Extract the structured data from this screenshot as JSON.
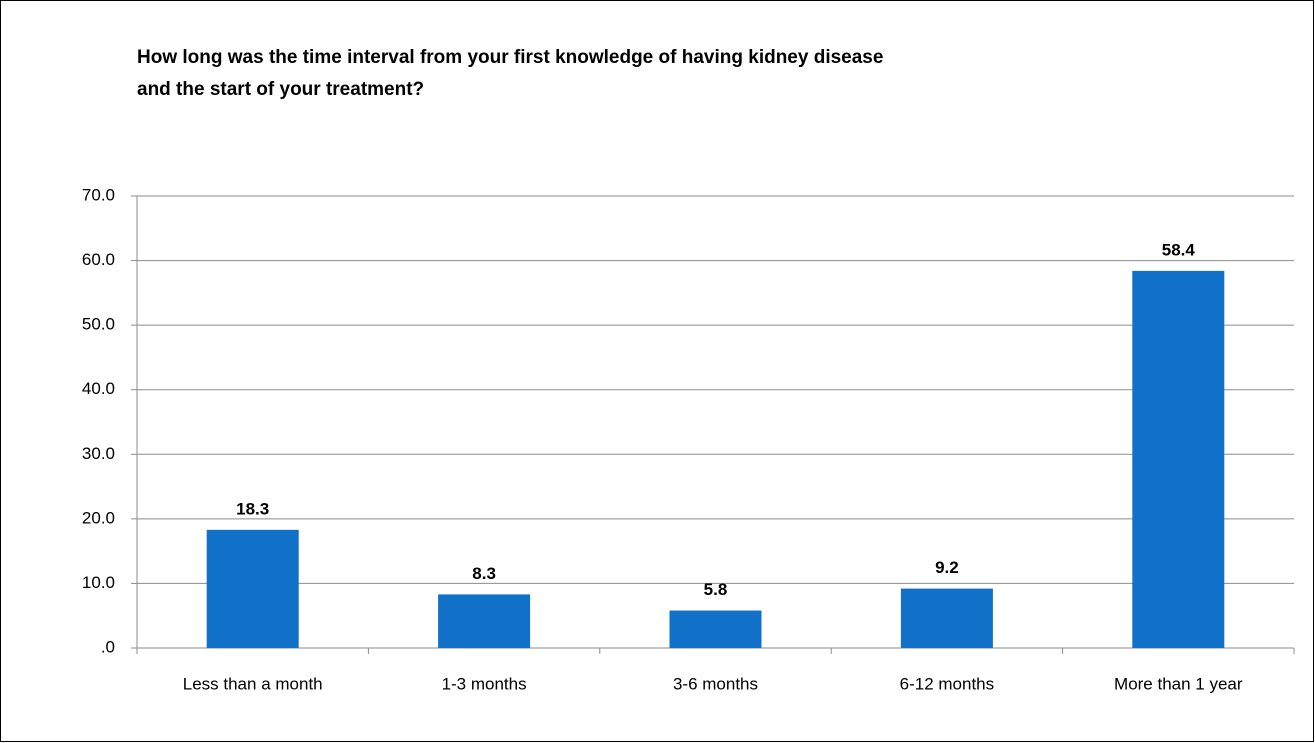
{
  "chart_data": {
    "type": "bar",
    "title": [
      "How long was the time interval from your first knowledge of having kidney disease",
      "and the start of your treatment?"
    ],
    "categories": [
      "Less than a month",
      "1-3 months",
      "3-6 months",
      "6-12 months",
      "More than 1 year"
    ],
    "values": [
      18.3,
      8.3,
      5.8,
      9.2,
      58.4
    ],
    "color": "#1170c8",
    "ylim": [
      0,
      70
    ],
    "yticks": [
      {
        "value": 0,
        "label": ".0"
      },
      {
        "value": 10,
        "label": "10.0"
      },
      {
        "value": 20,
        "label": "20.0"
      },
      {
        "value": 30,
        "label": "30.0"
      },
      {
        "value": 40,
        "label": "40.0"
      },
      {
        "value": 50,
        "label": "50.0"
      },
      {
        "value": 60,
        "label": "60.0"
      },
      {
        "value": 70,
        "label": "70.0"
      }
    ],
    "grid": true
  }
}
